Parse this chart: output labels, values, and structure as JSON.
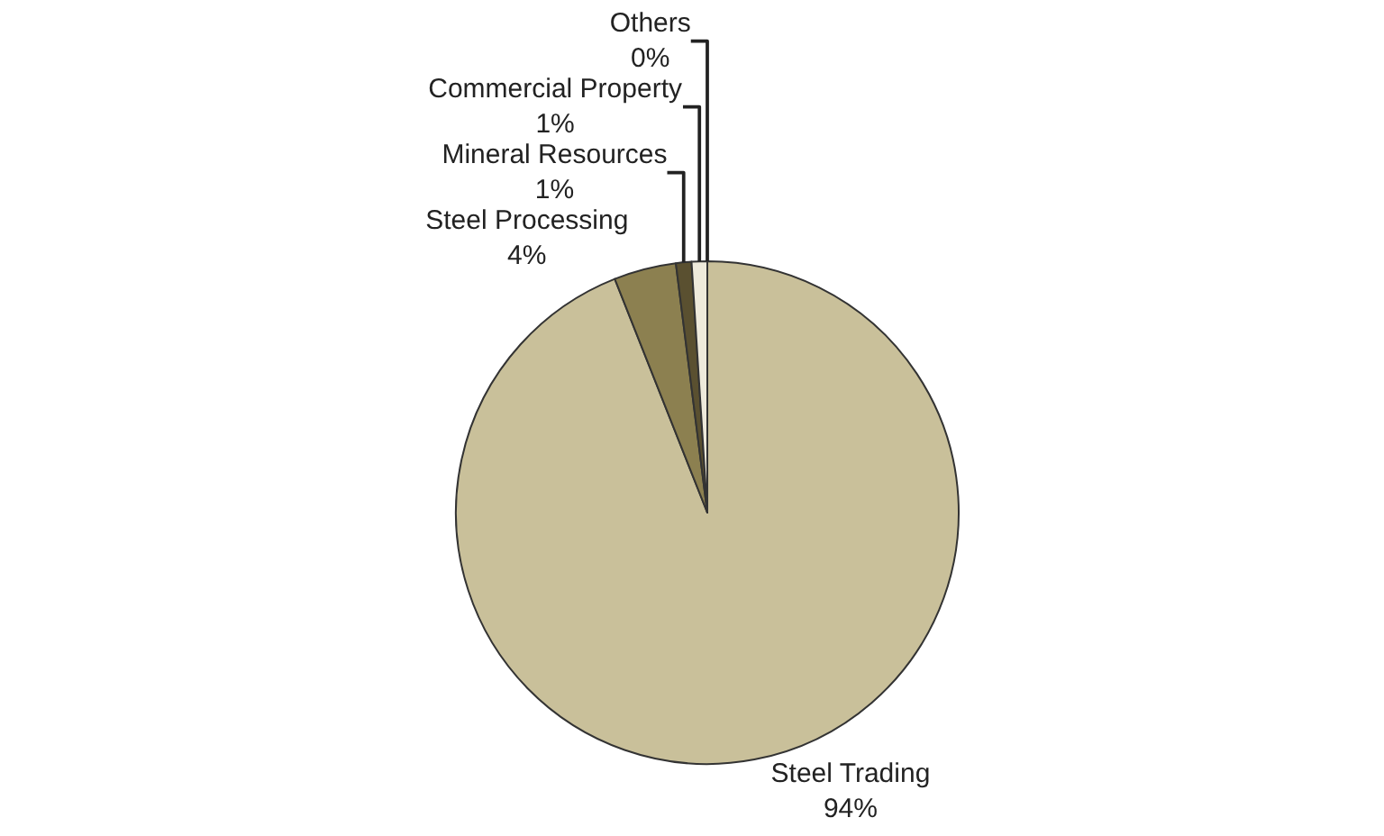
{
  "chart_data": {
    "type": "pie",
    "categories": [
      "Steel Trading",
      "Steel Processing",
      "Mineral Resources",
      "Commercial Property",
      "Others"
    ],
    "values": [
      94,
      4,
      1,
      1,
      0
    ],
    "value_labels": [
      "94%",
      "4%",
      "1%",
      "1%",
      "0%"
    ],
    "colors": [
      "#c9c09a",
      "#8c8050",
      "#5a5030",
      "#eeeadb",
      "#d8d2b0"
    ],
    "legend": false
  }
}
